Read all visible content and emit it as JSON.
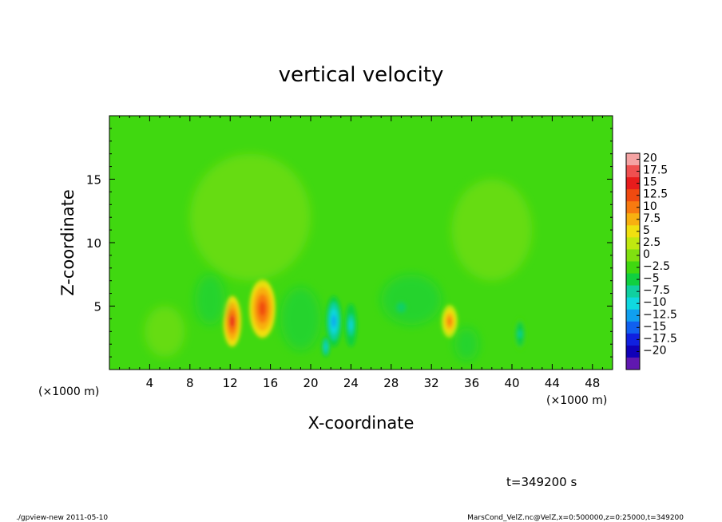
{
  "chart_data": {
    "type": "heatmap",
    "title": "vertical velocity",
    "xlabel": "X-coordinate",
    "ylabel": "Z-coordinate",
    "x_unit_note": "(×1000 m)",
    "x_unit_note_right": "(×1000 m)",
    "xlim": [
      0,
      50
    ],
    "ylim": [
      0,
      20
    ],
    "x_ticks": [
      4,
      8,
      12,
      16,
      20,
      24,
      28,
      32,
      36,
      40,
      44,
      48
    ],
    "y_ticks": [
      5,
      10,
      15
    ],
    "colorbar": {
      "labels": [
        "20",
        "17.5",
        "15",
        "12.5",
        "10",
        "7.5",
        "5",
        "2.5",
        "0",
        "−2.5",
        "−5",
        "−7.5",
        "−10",
        "−12.5",
        "−15",
        "−17.5",
        "−20"
      ],
      "colors": [
        "#f5a3a3",
        "#f05050",
        "#e81c1c",
        "#f04a10",
        "#f87a10",
        "#f8b010",
        "#f0e010",
        "#c0e810",
        "#80e010",
        "#40d810",
        "#10d040",
        "#10d0a0",
        "#10d8e0",
        "#10a0f0",
        "#1060f0",
        "#1020e0",
        "#1000b8",
        "#6018b0"
      ]
    },
    "field": {
      "background": "#40d810",
      "features": [
        {
          "kind": "updraft",
          "x": 12.2,
          "z": 3.8,
          "sx": 0.9,
          "sz": 2.0,
          "value": 14
        },
        {
          "kind": "updraft",
          "x": 15.2,
          "z": 4.8,
          "sx": 1.3,
          "sz": 2.3,
          "value": 13
        },
        {
          "kind": "updraft",
          "x": 33.8,
          "z": 3.8,
          "sx": 0.8,
          "sz": 1.3,
          "value": 10
        },
        {
          "kind": "weak_up",
          "x": 14.0,
          "z": 12.0,
          "sx": 6.0,
          "sz": 5.0,
          "value": 2
        },
        {
          "kind": "weak_up",
          "x": 38.0,
          "z": 11.0,
          "sx": 4.0,
          "sz": 4.0,
          "value": 2
        },
        {
          "kind": "weak_up",
          "x": 5.5,
          "z": 3.0,
          "sx": 2.0,
          "sz": 2.0,
          "value": 2
        },
        {
          "kind": "downdraft",
          "x": 22.3,
          "z": 3.8,
          "sx": 0.8,
          "sz": 2.0,
          "value": -9
        },
        {
          "kind": "downdraft",
          "x": 24.0,
          "z": 3.5,
          "sx": 0.6,
          "sz": 1.7,
          "value": -7
        },
        {
          "kind": "downdraft",
          "x": 21.5,
          "z": 1.8,
          "sx": 0.4,
          "sz": 0.8,
          "value": -8
        },
        {
          "kind": "downdraft",
          "x": 29.0,
          "z": 4.9,
          "sx": 0.7,
          "sz": 0.6,
          "value": -6
        },
        {
          "kind": "downdraft",
          "x": 40.8,
          "z": 2.8,
          "sx": 0.6,
          "sz": 1.3,
          "value": -5
        },
        {
          "kind": "weak_down",
          "x": 19.0,
          "z": 4.0,
          "sx": 2.0,
          "sz": 2.5,
          "value": -3
        },
        {
          "kind": "weak_down",
          "x": 30.0,
          "z": 5.5,
          "sx": 3.0,
          "sz": 2.0,
          "value": -3
        },
        {
          "kind": "weak_down",
          "x": 10.0,
          "z": 5.5,
          "sx": 1.5,
          "sz": 2.0,
          "value": -3
        },
        {
          "kind": "weak_down",
          "x": 35.5,
          "z": 2.0,
          "sx": 1.2,
          "sz": 1.3,
          "value": -3
        }
      ]
    }
  },
  "annotation_time": "t=349200 s",
  "footer_left": "./gpview-new   2011-05-10",
  "footer_right": "MarsCond_VelZ.nc@VelZ,x=0:500000,z=0:25000,t=349200"
}
